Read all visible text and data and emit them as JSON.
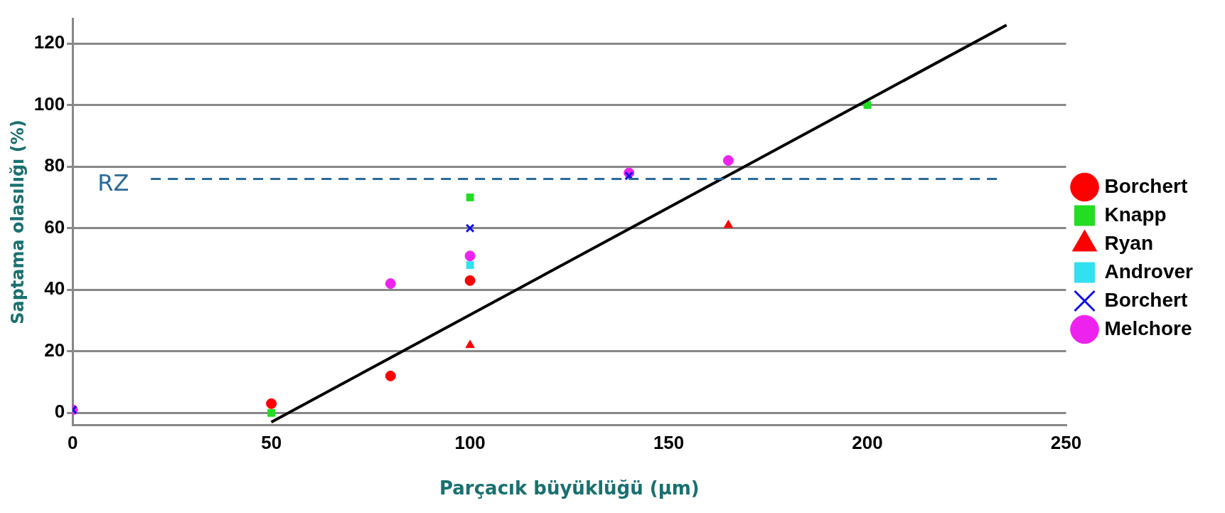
{
  "chart_data": {
    "type": "scatter",
    "xlabel": "Parçacık büyüklüğü (µm)",
    "ylabel": "Saptama olasılığı (%)",
    "xlim": [
      0,
      250
    ],
    "xticks": [
      0,
      50,
      100,
      150,
      200,
      250
    ],
    "ylim": [
      -4,
      128
    ],
    "yticks": [
      0,
      20,
      40,
      60,
      80,
      100,
      120
    ],
    "grid": "y",
    "legend": "right",
    "series": [
      {
        "name": "Borchert",
        "color": "#ff0000",
        "marker": "circle",
        "x": [
          50,
          80,
          100
        ],
        "values": [
          3,
          12,
          43
        ]
      },
      {
        "name": "Knapp",
        "color": "#22dd22",
        "marker": "square",
        "x": [
          50,
          100,
          200
        ],
        "values": [
          0,
          70,
          100
        ]
      },
      {
        "name": "Ryan",
        "color": "#ff0000",
        "marker": "triangle",
        "x": [
          100,
          165
        ],
        "values": [
          22,
          61
        ]
      },
      {
        "name": "Androver",
        "color": "#33e0f0",
        "marker": "square",
        "x": [
          100
        ],
        "values": [
          48
        ]
      },
      {
        "name": "Borchert",
        "color": "#1010ee",
        "marker": "cross",
        "x": [
          0,
          100,
          140
        ],
        "values": [
          1,
          60,
          77
        ]
      },
      {
        "name": "Melchore",
        "color": "#ee22ee",
        "marker": "circle",
        "x": [
          0,
          80,
          100,
          140,
          165
        ],
        "values": [
          1,
          42,
          51,
          78,
          82
        ]
      },
      {
        "type": "line",
        "color": "#000000",
        "marker": "none",
        "x": [
          50,
          235
        ],
        "values": [
          -3,
          126
        ]
      }
    ],
    "ref_lines": [
      {
        "axis": "y",
        "value": 76,
        "label": "RZ",
        "color": "#2a6a9a",
        "line_style": "dashed"
      }
    ]
  }
}
